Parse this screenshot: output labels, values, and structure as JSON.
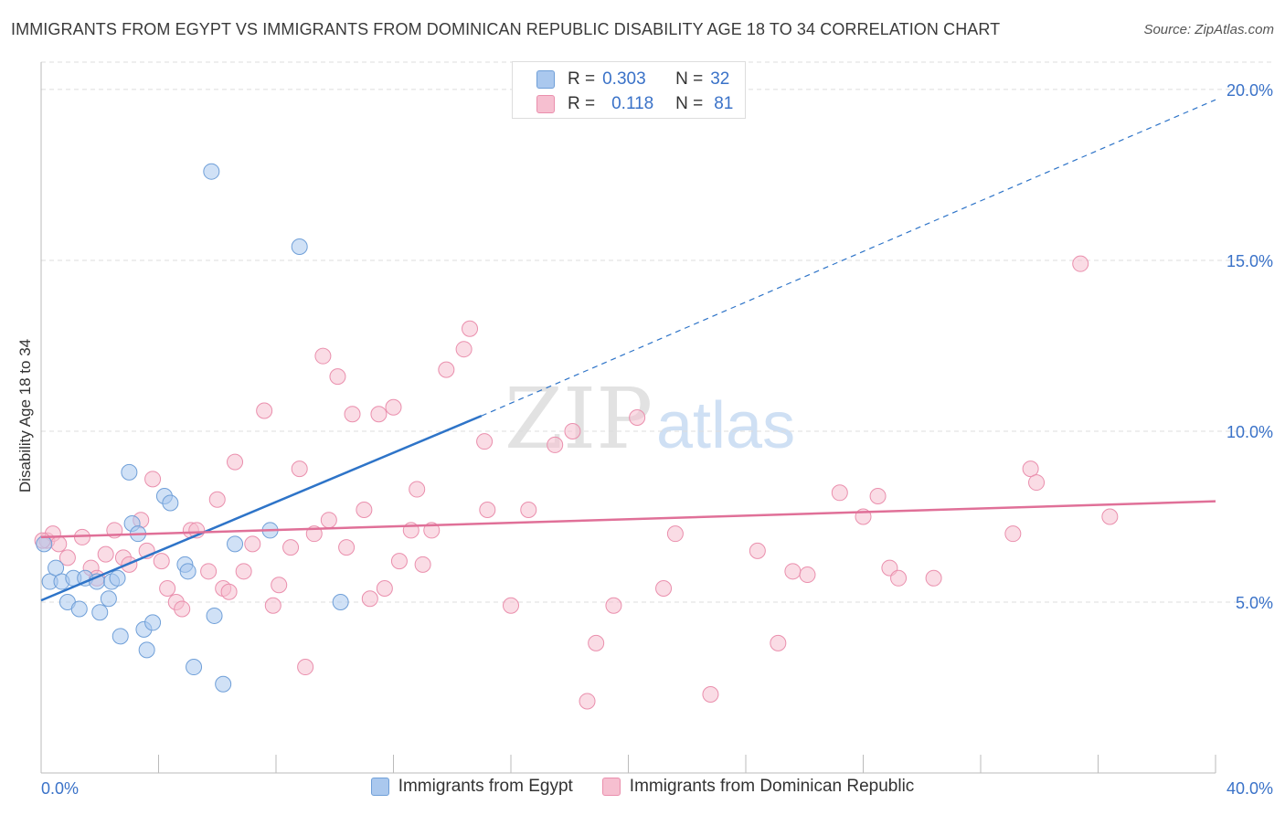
{
  "title": "IMMIGRANTS FROM EGYPT VS IMMIGRANTS FROM DOMINICAN REPUBLIC DISABILITY AGE 18 TO 34 CORRELATION CHART",
  "source": "Source: ZipAtlas.com",
  "watermark": {
    "zip": "ZIP",
    "atlas": "atlas"
  },
  "correlation_legend": [
    {
      "r_label": "R =",
      "r_value": "0.303",
      "n_label": "N =",
      "n_value": "32"
    },
    {
      "r_label": "R =",
      "r_value": "0.118",
      "n_label": "N =",
      "n_value": "81"
    }
  ],
  "colors": {
    "egypt_fill": "#aac8ee",
    "egypt_stroke": "#6f9fd8",
    "egypt_line": "#2e74c8",
    "dr_fill": "#f6bfd0",
    "dr_stroke": "#ea8fad",
    "dr_line": "#e07098",
    "axis_text": "#3a72c8",
    "grid": "#dcdcdc"
  },
  "chart_data": {
    "type": "scatter",
    "title": "IMMIGRANTS FROM EGYPT VS IMMIGRANTS FROM DOMINICAN REPUBLIC DISABILITY AGE 18 TO 34 CORRELATION CHART",
    "xlabel": "",
    "ylabel": "Disability Age 18 to 34",
    "xlim": [
      0,
      40
    ],
    "ylim": [
      0,
      20.8
    ],
    "x_tick_labels": [
      "0.0%",
      "40.0%"
    ],
    "y_ticks": [
      5,
      10,
      15,
      20
    ],
    "y_tick_labels": [
      "5.0%",
      "10.0%",
      "15.0%",
      "20.0%"
    ],
    "legend_position": "bottom-center",
    "series": [
      {
        "name": "Immigrants from Egypt",
        "r": 0.303,
        "n": 32,
        "trend": {
          "x0": 0,
          "y0": 5.05,
          "x1": 15.0,
          "y1": 10.45,
          "dashed_to_x": 40,
          "dashed_to_y": 19.7
        },
        "points": [
          [
            0.1,
            6.7
          ],
          [
            0.3,
            5.6
          ],
          [
            0.5,
            6.0
          ],
          [
            0.7,
            5.6
          ],
          [
            0.9,
            5.0
          ],
          [
            1.1,
            5.7
          ],
          [
            1.3,
            4.8
          ],
          [
            1.5,
            5.7
          ],
          [
            1.9,
            5.6
          ],
          [
            2.0,
            4.7
          ],
          [
            2.3,
            5.1
          ],
          [
            2.4,
            5.6
          ],
          [
            2.6,
            5.7
          ],
          [
            2.7,
            4.0
          ],
          [
            3.0,
            8.8
          ],
          [
            3.1,
            7.3
          ],
          [
            3.3,
            7.0
          ],
          [
            3.5,
            4.2
          ],
          [
            3.6,
            3.6
          ],
          [
            3.8,
            4.4
          ],
          [
            4.2,
            8.1
          ],
          [
            4.4,
            7.9
          ],
          [
            4.9,
            6.1
          ],
          [
            5.0,
            5.9
          ],
          [
            5.2,
            3.1
          ],
          [
            5.8,
            17.6
          ],
          [
            5.9,
            4.6
          ],
          [
            6.2,
            2.6
          ],
          [
            6.6,
            6.7
          ],
          [
            7.8,
            7.1
          ],
          [
            8.8,
            15.4
          ],
          [
            10.2,
            5.0
          ]
        ]
      },
      {
        "name": "Immigrants from Dominican Republic",
        "r": 0.118,
        "n": 81,
        "trend": {
          "x0": 0,
          "y0": 6.9,
          "x1": 40,
          "y1": 7.95
        },
        "points": [
          [
            0.2,
            6.8
          ],
          [
            0.4,
            7.0
          ],
          [
            0.6,
            6.7
          ],
          [
            0.9,
            6.3
          ],
          [
            1.4,
            6.9
          ],
          [
            1.7,
            6.0
          ],
          [
            1.9,
            5.7
          ],
          [
            2.2,
            6.4
          ],
          [
            2.5,
            7.1
          ],
          [
            2.8,
            6.3
          ],
          [
            3.0,
            6.1
          ],
          [
            3.4,
            7.4
          ],
          [
            3.6,
            6.5
          ],
          [
            3.8,
            8.6
          ],
          [
            4.1,
            6.2
          ],
          [
            4.3,
            5.4
          ],
          [
            4.6,
            5.0
          ],
          [
            4.8,
            4.8
          ],
          [
            5.1,
            7.1
          ],
          [
            5.3,
            7.1
          ],
          [
            5.7,
            5.9
          ],
          [
            6.0,
            8.0
          ],
          [
            6.2,
            5.4
          ],
          [
            6.4,
            5.3
          ],
          [
            6.6,
            9.1
          ],
          [
            6.9,
            5.9
          ],
          [
            7.2,
            6.7
          ],
          [
            7.6,
            10.6
          ],
          [
            7.9,
            4.9
          ],
          [
            8.1,
            5.5
          ],
          [
            8.5,
            6.6
          ],
          [
            8.8,
            8.9
          ],
          [
            9.0,
            3.1
          ],
          [
            9.3,
            7.0
          ],
          [
            9.6,
            12.2
          ],
          [
            9.8,
            7.4
          ],
          [
            10.1,
            11.6
          ],
          [
            10.4,
            6.6
          ],
          [
            10.6,
            10.5
          ],
          [
            11.0,
            7.7
          ],
          [
            11.2,
            5.1
          ],
          [
            11.5,
            10.5
          ],
          [
            11.7,
            5.4
          ],
          [
            12.0,
            10.7
          ],
          [
            12.2,
            6.2
          ],
          [
            12.6,
            7.1
          ],
          [
            12.8,
            8.3
          ],
          [
            13.0,
            6.1
          ],
          [
            13.3,
            7.1
          ],
          [
            13.8,
            11.8
          ],
          [
            14.4,
            12.4
          ],
          [
            14.6,
            13.0
          ],
          [
            15.1,
            9.7
          ],
          [
            15.2,
            7.7
          ],
          [
            16.0,
            4.9
          ],
          [
            16.6,
            7.7
          ],
          [
            17.5,
            9.6
          ],
          [
            18.1,
            10.0
          ],
          [
            18.6,
            2.1
          ],
          [
            18.9,
            3.8
          ],
          [
            19.5,
            4.9
          ],
          [
            20.3,
            10.4
          ],
          [
            21.2,
            5.4
          ],
          [
            21.6,
            7.0
          ],
          [
            22.8,
            2.3
          ],
          [
            24.4,
            6.5
          ],
          [
            25.1,
            3.8
          ],
          [
            25.6,
            5.9
          ],
          [
            26.1,
            5.8
          ],
          [
            27.2,
            8.2
          ],
          [
            28.0,
            7.5
          ],
          [
            28.5,
            8.1
          ],
          [
            28.9,
            6.0
          ],
          [
            29.2,
            5.7
          ],
          [
            30.4,
            5.7
          ],
          [
            33.1,
            7.0
          ],
          [
            33.7,
            8.9
          ],
          [
            33.9,
            8.5
          ],
          [
            35.4,
            14.9
          ],
          [
            36.4,
            7.5
          ],
          [
            0.05,
            6.8
          ]
        ]
      }
    ]
  }
}
